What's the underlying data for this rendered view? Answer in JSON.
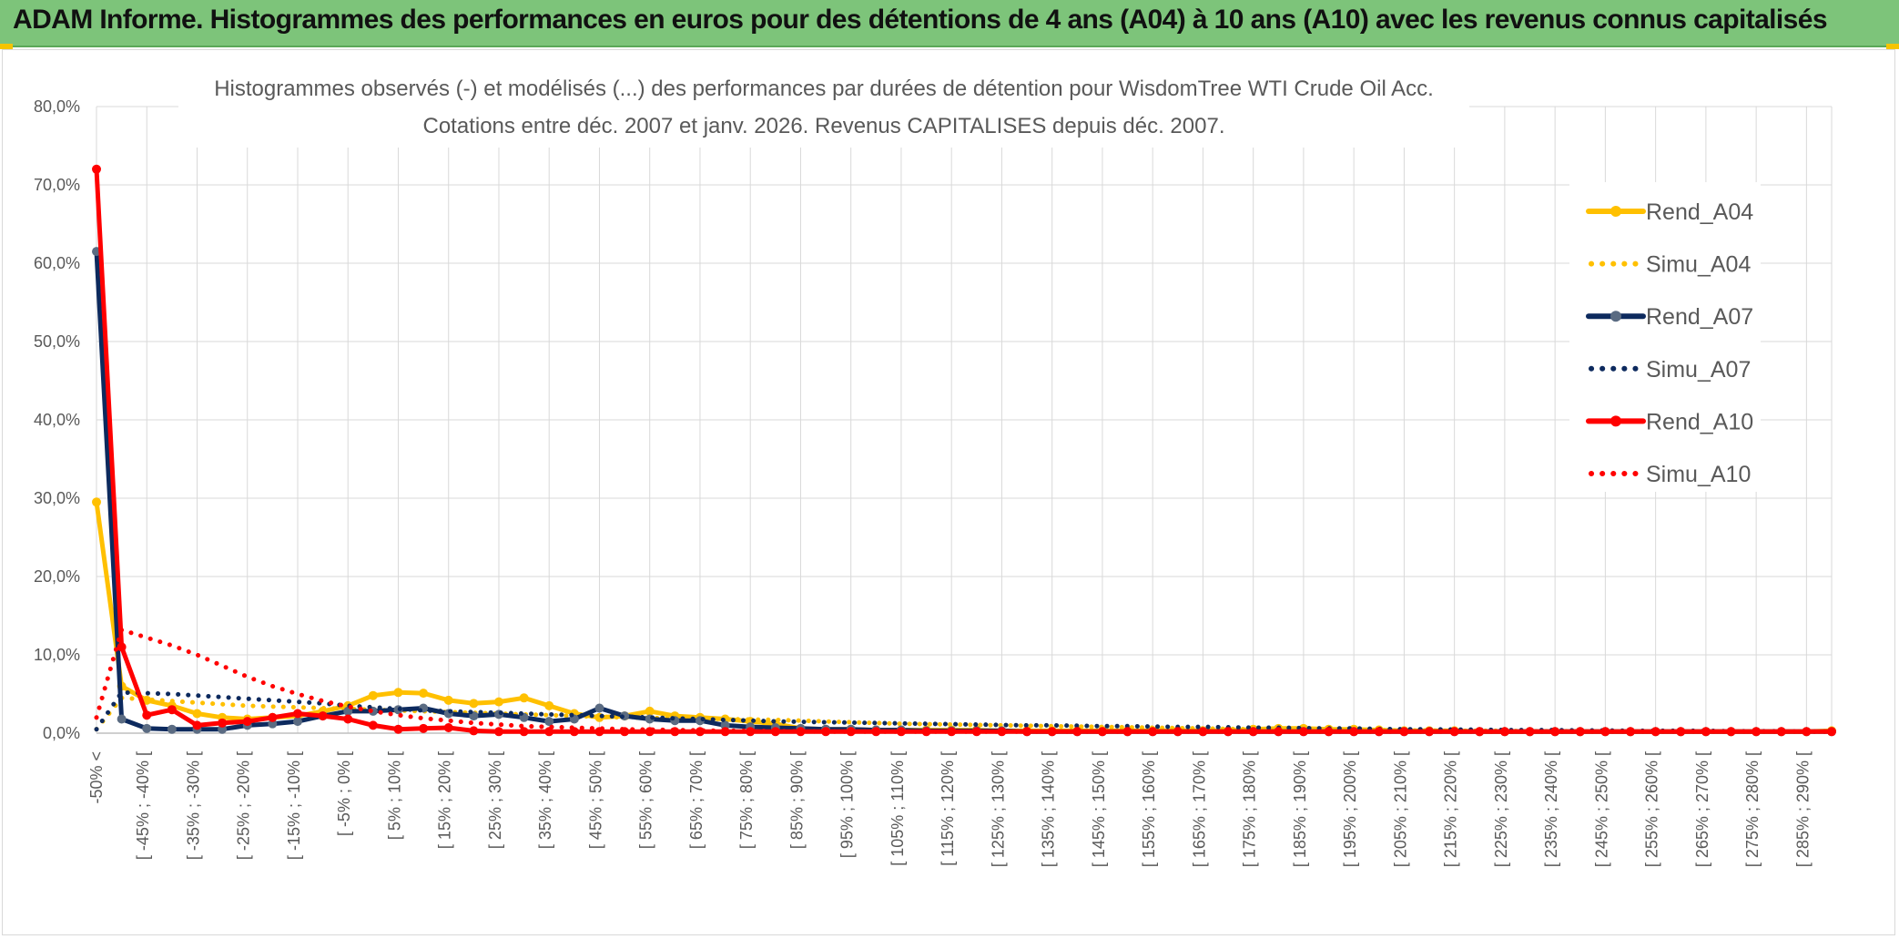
{
  "banner": {
    "title": "ADAM Informe. Histogrammes des performances en euros pour des détentions de 4 ans (A04) à 10 ans (A10) avec les revenus connus capitalisés"
  },
  "colors": {
    "banner_bg": "#7dc47a",
    "A04": "#ffc000",
    "A07": "#0d2a5e",
    "A07_marker": "#5a6b82",
    "A10": "#ff0000",
    "grid": "#d9d9d9"
  },
  "chart_data": {
    "type": "line",
    "title_lines": [
      "Histogrammes observés (-) et modélisés (...) des performances par durées de détention pour WisdomTree WTI Crude Oil Acc.",
      "Cotations entre déc. 2007 et janv. 2026.  Revenus CAPITALISES depuis déc. 2007."
    ],
    "ylim": [
      0,
      80
    ],
    "y_ticks": [
      "0,0%",
      "10,0%",
      "20,0%",
      "30,0%",
      "40,0%",
      "50,0%",
      "60,0%",
      "70,0%",
      "80,0%"
    ],
    "x_tick_labels": [
      "-50% <",
      "[ -45% ; -40% [",
      "[ -35% ; -30% [",
      "[ -25% ; -20% [",
      "[ -15% ; -10% [",
      "[ -5% ; 0% [",
      "[ 5% ; 10% [",
      "[ 15% ; 20% [",
      "[ 25% ; 30% [",
      "[ 35% ; 40% [",
      "[ 45% ; 50% [",
      "[ 55% ; 60% [",
      "[ 65% ; 70% [",
      "[ 75% ; 80% [",
      "[ 85% ; 90% [",
      "[ 95% ; 100% [",
      "[ 105% ; 110% [",
      "[ 115% ; 120% [",
      "[ 125% ; 130% [",
      "[ 135% ; 140% [",
      "[ 145% ; 150% [",
      "[ 155% ; 160% [",
      "[ 165% ; 170% [",
      "[ 175% ; 180% [",
      "[ 185% ; 190% [",
      "[ 195% ; 200% [",
      "[ 205% ; 210% [",
      "[ 215% ; 220% [",
      "[ 225% ; 230% [",
      "[ 235% ; 240% [",
      "[ 245% ; 250% [",
      "[ 255% ; 260% [",
      "[ 265% ; 270% [",
      "[ 275% ; 280% [",
      "[ 285% ; 290% ["
    ],
    "x_tick_every": 2,
    "n_bins": 70,
    "series": [
      {
        "name": "Rend_A04",
        "style": "solid",
        "color": "#ffc000",
        "marker": "#ffc000",
        "values": [
          29.5,
          6,
          4.2,
          3.5,
          2.5,
          2.0,
          1.8,
          2.0,
          2.2,
          2.8,
          3.5,
          4.8,
          5.2,
          5.1,
          4.2,
          3.8,
          4.0,
          4.5,
          3.5,
          2.5,
          2.0,
          2.2,
          2.8,
          2.2,
          2.0,
          1.8,
          1.5,
          1.2,
          0.6,
          0.5,
          0.5,
          0.4,
          0.4,
          0.4,
          0.4,
          0.4,
          0.3,
          0.3,
          0.3,
          0.3,
          0.3,
          0.3,
          0.3,
          0.3,
          0.3,
          0.3,
          0.5,
          0.6,
          0.6,
          0.5,
          0.5,
          0.4,
          0.3,
          0.3,
          0.3,
          0.2,
          0.2,
          0.2,
          0.2,
          0.2,
          0.2,
          0.2,
          0.2,
          0.2,
          0.2,
          0.2,
          0.2,
          0.2,
          0.2,
          0.3
        ]
      },
      {
        "name": "Simu_A04",
        "style": "dotted",
        "color": "#ffc000",
        "values": [
          0.5,
          4.5,
          4.3,
          4.1,
          3.9,
          3.7,
          3.5,
          3.4,
          3.3,
          3.2,
          3.1,
          3.0,
          2.9,
          2.8,
          2.7,
          2.6,
          2.5,
          2.4,
          2.3,
          2.2,
          2.1,
          2.0,
          1.95,
          1.9,
          1.85,
          1.8,
          1.75,
          1.7,
          1.6,
          1.5,
          1.4,
          1.3,
          1.2,
          1.15,
          1.1,
          1.05,
          1.0,
          0.95,
          0.9,
          0.85,
          0.8,
          0.75,
          0.7,
          0.65,
          0.6,
          0.55,
          0.5,
          0.5,
          0.45,
          0.45,
          0.4,
          0.4,
          0.35,
          0.35,
          0.3,
          0.3,
          0.3,
          0.25,
          0.25,
          0.25,
          0.2,
          0.2,
          0.2,
          0.2,
          0.2,
          0.2,
          0.2,
          0.2,
          0.2,
          0.2
        ]
      },
      {
        "name": "Rend_A07",
        "style": "solid",
        "color": "#0d2a5e",
        "marker": "#5a6b82",
        "values": [
          61.5,
          1.8,
          0.6,
          0.5,
          0.5,
          0.5,
          1.0,
          1.2,
          1.5,
          2.2,
          2.8,
          2.8,
          3.0,
          3.2,
          2.5,
          2.2,
          2.4,
          2.0,
          1.5,
          1.8,
          3.2,
          2.2,
          1.8,
          1.6,
          1.6,
          1.0,
          0.8,
          0.7,
          0.6,
          0.5,
          0.5,
          0.4,
          0.4,
          0.3,
          0.3,
          0.3,
          0.3,
          0.2,
          0.2,
          0.2,
          0.2,
          0.2,
          0.2,
          0.2,
          0.2,
          0.2,
          0.2,
          0.2,
          0.2,
          0.2,
          0.2,
          0.2,
          0.2,
          0.2,
          0.2,
          0.2,
          0.2,
          0.2,
          0.2,
          0.2,
          0.2,
          0.2,
          0.2,
          0.2,
          0.2,
          0.2,
          0.2,
          0.2,
          0.2,
          0.2
        ]
      },
      {
        "name": "Simu_A07",
        "style": "dotted",
        "color": "#0d2a5e",
        "values": [
          0.5,
          5.2,
          5.1,
          5.0,
          4.8,
          4.6,
          4.4,
          4.2,
          4.0,
          3.8,
          3.5,
          3.3,
          3.1,
          2.9,
          2.8,
          2.7,
          2.6,
          2.5,
          2.4,
          2.3,
          2.2,
          2.1,
          2.0,
          1.9,
          1.8,
          1.7,
          1.6,
          1.5,
          1.45,
          1.4,
          1.35,
          1.3,
          1.25,
          1.2,
          1.15,
          1.1,
          1.05,
          1.0,
          1.0,
          0.95,
          0.9,
          0.9,
          0.85,
          0.8,
          0.8,
          0.75,
          0.7,
          0.7,
          0.65,
          0.6,
          0.6,
          0.55,
          0.5,
          0.5,
          0.45,
          0.45,
          0.4,
          0.4,
          0.4,
          0.35,
          0.35,
          0.3,
          0.3,
          0.3,
          0.3,
          0.25,
          0.25,
          0.25,
          0.2,
          0.2
        ]
      },
      {
        "name": "Rend_A10",
        "style": "solid",
        "color": "#ff0000",
        "marker": "#ff0000",
        "values": [
          72.0,
          11.0,
          2.3,
          3.0,
          1.0,
          1.3,
          1.5,
          2.0,
          2.5,
          2.2,
          1.8,
          1.0,
          0.5,
          0.6,
          0.7,
          0.3,
          0.2,
          0.2,
          0.2,
          0.2,
          0.2,
          0.2,
          0.2,
          0.2,
          0.2,
          0.2,
          0.2,
          0.2,
          0.2,
          0.2,
          0.2,
          0.2,
          0.2,
          0.2,
          0.2,
          0.2,
          0.2,
          0.2,
          0.2,
          0.2,
          0.2,
          0.2,
          0.2,
          0.2,
          0.2,
          0.2,
          0.2,
          0.2,
          0.2,
          0.2,
          0.2,
          0.2,
          0.2,
          0.2,
          0.2,
          0.2,
          0.2,
          0.2,
          0.2,
          0.2,
          0.2,
          0.2,
          0.2,
          0.2,
          0.2,
          0.2,
          0.2,
          0.2,
          0.2,
          0.2
        ]
      },
      {
        "name": "Simu_A10",
        "style": "dotted",
        "color": "#ff0000",
        "values": [
          2.0,
          13.2,
          12.2,
          11.2,
          10.0,
          8.6,
          7.2,
          6.0,
          5.0,
          4.1,
          3.4,
          2.8,
          2.3,
          1.9,
          1.6,
          1.3,
          1.1,
          0.9,
          0.8,
          0.7,
          0.6,
          0.5,
          0.45,
          0.4,
          0.35,
          0.3,
          0.3,
          0.25,
          0.25,
          0.2,
          0.2,
          0.2,
          0.2,
          0.2,
          0.2,
          0.2,
          0.2,
          0.2,
          0.2,
          0.2,
          0.2,
          0.2,
          0.2,
          0.2,
          0.2,
          0.2,
          0.2,
          0.2,
          0.2,
          0.2,
          0.2,
          0.2,
          0.2,
          0.2,
          0.2,
          0.2,
          0.2,
          0.2,
          0.2,
          0.2,
          0.2,
          0.2,
          0.2,
          0.2,
          0.2,
          0.2,
          0.2,
          0.2,
          0.2,
          0.2
        ]
      }
    ],
    "legend": [
      {
        "label": "Rend_A04",
        "style": "solid",
        "color": "#ffc000"
      },
      {
        "label": "Simu_A04",
        "style": "dotted",
        "color": "#ffc000"
      },
      {
        "label": "Rend_A07",
        "style": "solid",
        "color": "#0d2a5e"
      },
      {
        "label": "Simu_A07",
        "style": "dotted",
        "color": "#0d2a5e"
      },
      {
        "label": "Rend_A10",
        "style": "solid",
        "color": "#ff0000"
      },
      {
        "label": "Simu_A10",
        "style": "dotted",
        "color": "#ff0000"
      }
    ],
    "legend_position": "right"
  }
}
